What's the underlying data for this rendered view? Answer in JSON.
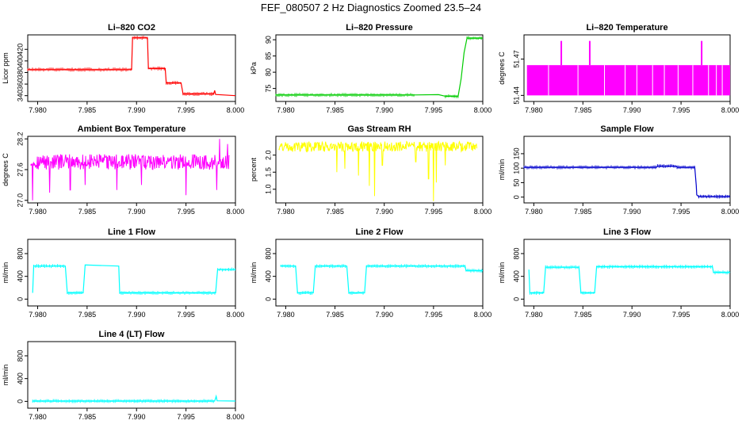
{
  "page": {
    "title": "FEF_080507  2 Hz Diagnostics Zoomed 23.5–24"
  },
  "chart_data": [
    {
      "type": "line",
      "title": "Li–820 CO2",
      "xlabel": "",
      "ylabel": "Licor ppm",
      "xlim": [
        7.979,
        8.0
      ],
      "ylim": [
        330,
        445
      ],
      "xticks": [
        "7.980",
        "7.985",
        "7.990",
        "7.995",
        "8.000"
      ],
      "xtick_values": [
        7.98,
        7.985,
        7.99,
        7.995,
        8.0
      ],
      "yticks": [
        "340",
        "360",
        "380",
        "400",
        "420"
      ],
      "ytick_values": [
        340,
        360,
        380,
        400,
        420
      ],
      "color": "#ff0000",
      "series": [
        {
          "name": "CO2",
          "values": [
            [
              7.979,
              385
            ],
            [
              7.9895,
              385
            ],
            [
              7.9896,
              440
            ],
            [
              7.9911,
              440
            ],
            [
              7.9912,
              387
            ],
            [
              7.9929,
              387
            ],
            [
              7.993,
              362
            ],
            [
              7.9945,
              362
            ],
            [
              7.9947,
              343
            ],
            [
              7.9978,
              343
            ],
            [
              7.9979,
              349
            ],
            [
              7.998,
              342
            ],
            [
              8.0,
              340
            ]
          ]
        }
      ]
    },
    {
      "type": "line",
      "title": "Li–820 Pressure",
      "xlabel": "",
      "ylabel": "kPa",
      "xlim": [
        7.979,
        8.0
      ],
      "ylim": [
        71,
        91.5
      ],
      "xticks": [
        "7.980",
        "7.985",
        "7.990",
        "7.995",
        "8.000"
      ],
      "xtick_values": [
        7.98,
        7.985,
        7.99,
        7.995,
        8.0
      ],
      "yticks": [
        "75",
        "80",
        "85",
        "90"
      ],
      "ytick_values": [
        75,
        80,
        85,
        90
      ],
      "color": "#00cc00",
      "series": [
        {
          "name": "Pressure",
          "values": [
            [
              7.979,
              73.0
            ],
            [
              7.993,
              73.0
            ],
            [
              7.9955,
              73.1
            ],
            [
              7.9962,
              72.6
            ],
            [
              7.9975,
              72.6
            ],
            [
              7.9978,
              78
            ],
            [
              7.9981,
              86
            ],
            [
              7.9984,
              90.5
            ],
            [
              8.0,
              90.5
            ]
          ]
        }
      ]
    },
    {
      "type": "bar",
      "title": "Li–820 Temperature",
      "xlabel": "",
      "ylabel": "degrees C",
      "xlim": [
        7.979,
        8.0
      ],
      "ylim": [
        51.435,
        51.49
      ],
      "xticks": [
        "7.980",
        "7.985",
        "7.990",
        "7.995",
        "8.000"
      ],
      "xtick_values": [
        7.98,
        7.985,
        7.99,
        7.995,
        8.0
      ],
      "yticks": [
        "51.44",
        "51.47"
      ],
      "ytick_values": [
        51.44,
        51.47
      ],
      "color": "#ff00ff",
      "band": [
        51.44,
        51.465
      ],
      "gaps": [
        7.9815,
        7.9845,
        7.9872,
        7.9893,
        7.9905,
        7.9921,
        7.9933,
        7.9947,
        7.9962,
        7.9978,
        7.9986,
        7.9992
      ],
      "spikes": [
        7.9828,
        7.9857,
        7.9971
      ],
      "spike_top": 51.485
    },
    {
      "type": "line",
      "title": "Ambient Box Temperature",
      "xlabel": "",
      "ylabel": "degrees C",
      "xlim": [
        7.979,
        8.0
      ],
      "ylim": [
        26.95,
        28.25
      ],
      "xticks": [
        "7.980",
        "7.985",
        "7.990",
        "7.995",
        "8.000"
      ],
      "xtick_values": [
        7.98,
        7.985,
        7.99,
        7.995,
        8.0
      ],
      "yticks": [
        "27.0",
        "27.6",
        "28.2"
      ],
      "ytick_values": [
        27.0,
        27.6,
        28.2
      ],
      "color": "#ff00ff",
      "noise": {
        "base": 27.75,
        "amp": 0.15,
        "spikes": [
          [
            7.9795,
            27.0
          ],
          [
            7.9812,
            27.15
          ],
          [
            7.9833,
            27.2
          ],
          [
            7.9848,
            27.3
          ],
          [
            7.988,
            27.2
          ],
          [
            7.9905,
            27.3
          ],
          [
            7.995,
            27.1
          ],
          [
            7.9981,
            27.2
          ],
          [
            7.9984,
            28.2
          ],
          [
            7.9992,
            28.1
          ]
        ]
      }
    },
    {
      "type": "line",
      "title": "Gas Stream RH",
      "xlabel": "",
      "ylabel": "percent",
      "xlim": [
        7.979,
        8.0
      ],
      "ylim": [
        0.6,
        2.55
      ],
      "xticks": [
        "7.980",
        "7.985",
        "7.990",
        "7.995",
        "8.000"
      ],
      "xtick_values": [
        7.98,
        7.985,
        7.99,
        7.995,
        8.0
      ],
      "yticks": [
        "1.0",
        "1.5",
        "2.0"
      ],
      "ytick_values": [
        1.0,
        1.5,
        2.0
      ],
      "color": "#ffff00",
      "noise": {
        "base": 2.25,
        "amp": 0.15,
        "spikes": [
          [
            7.9852,
            1.5
          ],
          [
            7.986,
            1.6
          ],
          [
            7.9874,
            1.4
          ],
          [
            7.9885,
            1.1
          ],
          [
            7.989,
            0.8
          ],
          [
            7.9898,
            1.7
          ],
          [
            7.9932,
            1.8
          ],
          [
            7.9945,
            1.3
          ],
          [
            7.995,
            0.65
          ],
          [
            7.9953,
            1.2
          ],
          [
            7.9962,
            1.7
          ]
        ]
      }
    },
    {
      "type": "line",
      "title": "Sample Flow",
      "xlabel": "",
      "ylabel": "ml/min",
      "xlim": [
        7.979,
        8.0
      ],
      "ylim": [
        -20,
        210
      ],
      "xticks": [
        "7.980",
        "7.985",
        "7.990",
        "7.995",
        "8.000"
      ],
      "xtick_values": [
        7.98,
        7.985,
        7.99,
        7.995,
        8.0
      ],
      "yticks": [
        "0",
        "50",
        "100",
        "150"
      ],
      "ytick_values": [
        0,
        50,
        100,
        150
      ],
      "color": "#0000cc",
      "series": [
        {
          "name": "Sample Flow",
          "values": [
            [
              7.979,
              103
            ],
            [
              7.9925,
              103
            ],
            [
              7.9926,
              107
            ],
            [
              7.9945,
              107
            ],
            [
              7.9946,
              103
            ],
            [
              7.9964,
              103
            ],
            [
              7.99655,
              40
            ],
            [
              7.9966,
              8
            ],
            [
              7.9968,
              2
            ],
            [
              8.0,
              2
            ]
          ]
        }
      ]
    },
    {
      "type": "line",
      "title": "Line 1 Flow",
      "xlabel": "",
      "ylabel": "ml/min",
      "xlim": [
        7.979,
        8.0
      ],
      "ylim": [
        -120,
        1050
      ],
      "xticks": [
        "7.980",
        "7.985",
        "7.990",
        "7.995",
        "8.000"
      ],
      "xtick_values": [
        7.98,
        7.985,
        7.99,
        7.995,
        8.0
      ],
      "yticks": [
        "0",
        "400",
        "800"
      ],
      "ytick_values": [
        0,
        400,
        800
      ],
      "color": "#00ffff",
      "series": [
        {
          "name": "Line 1",
          "values": [
            [
              7.9795,
              110
            ],
            [
              7.9796,
              580
            ],
            [
              7.9828,
              580
            ],
            [
              7.983,
              110
            ],
            [
              7.9846,
              110
            ],
            [
              7.9848,
              600
            ],
            [
              7.9882,
              580
            ],
            [
              7.9883,
              110
            ],
            [
              7.998,
              110
            ],
            [
              7.9982,
              520
            ],
            [
              8.0,
              520
            ]
          ]
        }
      ]
    },
    {
      "type": "line",
      "title": "Line 2 Flow",
      "xlabel": "",
      "ylabel": "ml/min",
      "xlim": [
        7.979,
        8.0
      ],
      "ylim": [
        -120,
        1050
      ],
      "xticks": [
        "7.980",
        "7.985",
        "7.990",
        "7.995",
        "8.000"
      ],
      "xtick_values": [
        7.98,
        7.985,
        7.99,
        7.995,
        8.0
      ],
      "yticks": [
        "0",
        "400",
        "800"
      ],
      "ytick_values": [
        0,
        400,
        800
      ],
      "color": "#00ffff",
      "series": [
        {
          "name": "Line 2",
          "values": [
            [
              7.9795,
              580
            ],
            [
              7.981,
              580
            ],
            [
              7.9812,
              110
            ],
            [
              7.9828,
              110
            ],
            [
              7.983,
              580
            ],
            [
              7.9862,
              580
            ],
            [
              7.9864,
              110
            ],
            [
              7.988,
              110
            ],
            [
              7.9882,
              580
            ],
            [
              7.9982,
              580
            ],
            [
              7.9983,
              500
            ],
            [
              8.0,
              500
            ]
          ]
        }
      ]
    },
    {
      "type": "line",
      "title": "Line 3 Flow",
      "xlabel": "",
      "ylabel": "ml/min",
      "xlim": [
        7.979,
        8.0
      ],
      "ylim": [
        -120,
        1050
      ],
      "xticks": [
        "7.980",
        "7.985",
        "7.990",
        "7.995",
        "8.000"
      ],
      "xtick_values": [
        7.98,
        7.985,
        7.99,
        7.995,
        8.0
      ],
      "yticks": [
        "0",
        "400",
        "800"
      ],
      "ytick_values": [
        0,
        400,
        800
      ],
      "color": "#00ffff",
      "series": [
        {
          "name": "Line 3",
          "values": [
            [
              7.9795,
              520
            ],
            [
              7.9796,
              110
            ],
            [
              7.981,
              110
            ],
            [
              7.9812,
              560
            ],
            [
              7.9846,
              560
            ],
            [
              7.9848,
              110
            ],
            [
              7.9862,
              110
            ],
            [
              7.9864,
              570
            ],
            [
              7.9982,
              570
            ],
            [
              7.9983,
              470
            ],
            [
              8.0,
              470
            ]
          ]
        }
      ]
    },
    {
      "type": "line",
      "title": "Line 4 (LT) Flow",
      "xlabel": "",
      "ylabel": "ml/min",
      "xlim": [
        7.979,
        8.0
      ],
      "ylim": [
        -120,
        1050
      ],
      "xticks": [
        "7.980",
        "7.985",
        "7.990",
        "7.995",
        "8.000"
      ],
      "xtick_values": [
        7.98,
        7.985,
        7.99,
        7.995,
        8.0
      ],
      "yticks": [
        "0",
        "400",
        "800"
      ],
      "ytick_values": [
        0,
        400,
        800
      ],
      "color": "#00ffff",
      "series": [
        {
          "name": "Line 4",
          "values": [
            [
              7.9795,
              5
            ],
            [
              7.9979,
              5
            ],
            [
              7.99805,
              90
            ],
            [
              7.99815,
              10
            ],
            [
              8.0,
              5
            ]
          ]
        }
      ]
    }
  ]
}
